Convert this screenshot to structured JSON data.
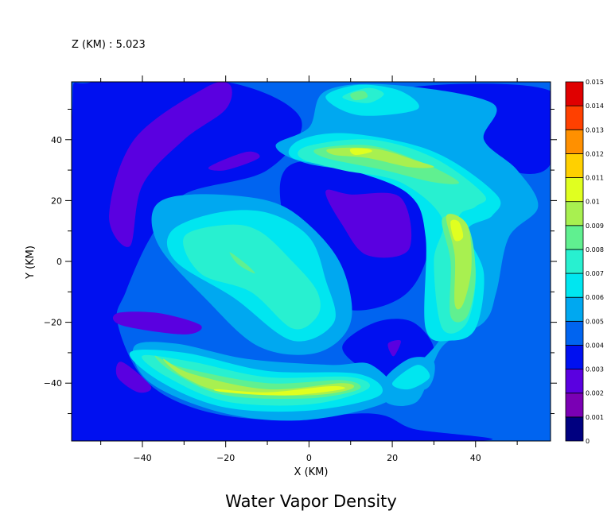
{
  "chart_data": {
    "type": "heatmap",
    "title": "Water Vapor Density",
    "subtitle": "Z (KM) : 5.023",
    "xlabel": "X (KM)",
    "ylabel": "Y (KM)",
    "xlim": [
      -57,
      58
    ],
    "ylim": [
      -59,
      59
    ],
    "xticks": [
      -40,
      -20,
      0,
      20,
      40
    ],
    "yticks": [
      -40,
      -20,
      0,
      20,
      40
    ],
    "colorbar": {
      "levels": [
        "0",
        "0.001",
        "0.002",
        "0.003",
        "0.004",
        "0.005",
        "0.006",
        "0.007",
        "0.008",
        "0.009",
        "0.01",
        "0.011",
        "0.012",
        "0.013",
        "0.014",
        "0.015"
      ],
      "colors": [
        "#000080",
        "#7a00b4",
        "#5a00e0",
        "#0010f0",
        "#0064f0",
        "#00a8f0",
        "#00e6f0",
        "#28f0d0",
        "#60f090",
        "#a8f050",
        "#e0ff20",
        "#ffd000",
        "#ff9000",
        "#ff4000",
        "#e00000",
        "#a00000"
      ]
    },
    "background_level": 0.004,
    "regions": [
      {
        "name": "low-nw",
        "level": 0.003,
        "points": [
          [
            -57,
            45
          ],
          [
            -52,
            59
          ],
          [
            -20,
            59
          ],
          [
            -2,
            47
          ],
          [
            -10,
            30
          ],
          [
            -30,
            22
          ],
          [
            -38,
            8
          ],
          [
            -44,
            -10
          ],
          [
            -46,
            -20
          ],
          [
            -40,
            -38
          ],
          [
            -28,
            -48
          ],
          [
            -10,
            -52
          ],
          [
            15,
            -50
          ],
          [
            25,
            -55
          ],
          [
            40,
            -59
          ],
          [
            -57,
            -59
          ]
        ]
      },
      {
        "name": "low-ne",
        "level": 0.003,
        "points": [
          [
            20,
            56
          ],
          [
            36,
            42
          ],
          [
            48,
            30
          ],
          [
            58,
            32
          ],
          [
            58,
            56
          ]
        ]
      },
      {
        "name": "low-c",
        "level": 0.003,
        "points": [
          [
            -4,
            32
          ],
          [
            22,
            30
          ],
          [
            30,
            20
          ],
          [
            28,
            0
          ],
          [
            22,
            -12
          ],
          [
            10,
            -16
          ],
          [
            0,
            -8
          ],
          [
            -6,
            12
          ]
        ]
      },
      {
        "name": "low-s",
        "level": 0.003,
        "points": [
          [
            8,
            -28
          ],
          [
            16,
            -20
          ],
          [
            25,
            -20
          ],
          [
            30,
            -30
          ],
          [
            22,
            -38
          ],
          [
            14,
            -36
          ]
        ]
      },
      {
        "name": "drop-nw",
        "level": 0.002,
        "points": [
          [
            -48,
            15
          ],
          [
            -42,
            40
          ],
          [
            -25,
            57
          ],
          [
            -19,
            58
          ],
          [
            -20,
            50
          ],
          [
            -30,
            40
          ],
          [
            -40,
            25
          ],
          [
            -43,
            5
          ]
        ]
      },
      {
        "name": "drop-n",
        "level": 0.002,
        "points": [
          [
            -24,
            31
          ],
          [
            -15,
            36
          ],
          [
            -12,
            34
          ],
          [
            -20,
            30
          ]
        ]
      },
      {
        "name": "drop-c",
        "level": 0.002,
        "points": [
          [
            4,
            23
          ],
          [
            10,
            22
          ],
          [
            22,
            21
          ],
          [
            24,
            4
          ],
          [
            14,
            2
          ],
          [
            8,
            12
          ]
        ]
      },
      {
        "name": "drop-sw",
        "level": 0.002,
        "points": [
          [
            -46,
            -17
          ],
          [
            -36,
            -17
          ],
          [
            -26,
            -21
          ],
          [
            -30,
            -24
          ],
          [
            -45,
            -21
          ]
        ]
      },
      {
        "name": "drop-s",
        "level": 0.002,
        "points": [
          [
            -45,
            -33
          ],
          [
            -38,
            -41
          ],
          [
            -41,
            -43
          ],
          [
            -46,
            -38
          ]
        ]
      },
      {
        "name": "drop-s2",
        "level": 0.002,
        "points": [
          [
            19,
            -27
          ],
          [
            22,
            -26
          ],
          [
            21,
            -30
          ],
          [
            20,
            -31
          ]
        ]
      },
      {
        "name": "b5-a",
        "level": 0.005,
        "points": [
          [
            -37,
            18
          ],
          [
            -28,
            22
          ],
          [
            -10,
            20
          ],
          [
            0,
            12
          ],
          [
            8,
            -2
          ],
          [
            10,
            -20
          ],
          [
            2,
            -30
          ],
          [
            -12,
            -28
          ],
          [
            -25,
            -12
          ],
          [
            -36,
            5
          ]
        ]
      },
      {
        "name": "b5-b",
        "level": 0.005,
        "points": [
          [
            -42,
            -28
          ],
          [
            -32,
            -27
          ],
          [
            -15,
            -32
          ],
          [
            5,
            -34
          ],
          [
            15,
            -34
          ],
          [
            20,
            -45
          ],
          [
            0,
            -52
          ],
          [
            -20,
            -50
          ],
          [
            -38,
            -40
          ]
        ]
      },
      {
        "name": "b5-c",
        "level": 0.005,
        "points": [
          [
            -8,
            38
          ],
          [
            0,
            44
          ],
          [
            4,
            56
          ],
          [
            20,
            58
          ],
          [
            44,
            52
          ],
          [
            42,
            40
          ],
          [
            50,
            30
          ],
          [
            55,
            18
          ],
          [
            48,
            8
          ],
          [
            45,
            -10
          ],
          [
            42,
            -20
          ],
          [
            32,
            -28
          ],
          [
            26,
            -46
          ],
          [
            18,
            -44
          ],
          [
            32,
            -24
          ],
          [
            30,
            0
          ],
          [
            30,
            20
          ],
          [
            20,
            28
          ],
          [
            0,
            32
          ]
        ]
      },
      {
        "name": "b5-d",
        "level": 0.005,
        "points": [
          [
            18,
            -40
          ],
          [
            24,
            -32
          ],
          [
            30,
            -33
          ],
          [
            28,
            -42
          ]
        ]
      },
      {
        "name": "b6-a",
        "level": 0.006,
        "points": [
          [
            -33,
            10
          ],
          [
            -22,
            16
          ],
          [
            -10,
            16
          ],
          [
            0,
            8
          ],
          [
            4,
            -6
          ],
          [
            6,
            -20
          ],
          [
            -4,
            -26
          ],
          [
            -18,
            -12
          ],
          [
            -32,
            0
          ]
        ]
      },
      {
        "name": "b6-b",
        "level": 0.006,
        "points": [
          [
            -43,
            -30
          ],
          [
            -30,
            -30
          ],
          [
            -10,
            -36
          ],
          [
            12,
            -37
          ],
          [
            17,
            -44
          ],
          [
            0,
            -49
          ],
          [
            -20,
            -48
          ],
          [
            -35,
            -40
          ]
        ]
      },
      {
        "name": "b6-c",
        "level": 0.006,
        "points": [
          [
            -2,
            40
          ],
          [
            10,
            42
          ],
          [
            30,
            36
          ],
          [
            45,
            22
          ],
          [
            44,
            15
          ],
          [
            38,
            10
          ],
          [
            42,
            -4
          ],
          [
            40,
            -22
          ],
          [
            34,
            -26
          ],
          [
            28,
            -22
          ],
          [
            28,
            8
          ],
          [
            24,
            22
          ],
          [
            10,
            30
          ],
          [
            -4,
            34
          ]
        ]
      },
      {
        "name": "b6-d",
        "level": 0.006,
        "points": [
          [
            4,
            54
          ],
          [
            12,
            58
          ],
          [
            22,
            56
          ],
          [
            26,
            50
          ],
          [
            12,
            48
          ]
        ]
      },
      {
        "name": "b6-e",
        "level": 0.006,
        "points": [
          [
            20,
            -40
          ],
          [
            26,
            -34
          ],
          [
            29,
            -38
          ],
          [
            24,
            -42
          ]
        ]
      },
      {
        "name": "b7-a",
        "level": 0.007,
        "points": [
          [
            -30,
            8
          ],
          [
            -20,
            12
          ],
          [
            -12,
            10
          ],
          [
            -4,
            0
          ],
          [
            2,
            -10
          ],
          [
            2,
            -18
          ],
          [
            -4,
            -22
          ],
          [
            -14,
            -10
          ],
          [
            -26,
            -4
          ]
        ]
      },
      {
        "name": "b7-b",
        "level": 0.007,
        "points": [
          [
            -40,
            -31
          ],
          [
            -28,
            -33
          ],
          [
            -10,
            -38
          ],
          [
            10,
            -38
          ],
          [
            14,
            -42
          ],
          [
            0,
            -47
          ],
          [
            -20,
            -46
          ],
          [
            -34,
            -38
          ]
        ]
      },
      {
        "name": "b7-c",
        "level": 0.007,
        "points": [
          [
            0,
            38
          ],
          [
            15,
            40
          ],
          [
            30,
            34
          ],
          [
            42,
            22
          ],
          [
            40,
            18
          ],
          [
            36,
            14
          ],
          [
            40,
            -2
          ],
          [
            38,
            -20
          ],
          [
            32,
            -22
          ],
          [
            30,
            0
          ],
          [
            32,
            14
          ],
          [
            22,
            26
          ],
          [
            8,
            30
          ],
          [
            -2,
            34
          ]
        ]
      },
      {
        "name": "b7-d",
        "level": 0.007,
        "points": [
          [
            8,
            54
          ],
          [
            14,
            57
          ],
          [
            18,
            55
          ],
          [
            14,
            52
          ]
        ]
      },
      {
        "name": "b8-a",
        "level": 0.008,
        "points": [
          [
            -19,
            3
          ],
          [
            -15,
            -1
          ],
          [
            -13,
            -4
          ],
          [
            -17,
            -1
          ]
        ]
      },
      {
        "name": "b8-b",
        "level": 0.008,
        "points": [
          [
            -37,
            -31
          ],
          [
            -30,
            -35
          ],
          [
            -10,
            -40
          ],
          [
            8,
            -39
          ],
          [
            12,
            -42
          ],
          [
            0,
            -45
          ],
          [
            -20,
            -44
          ],
          [
            -32,
            -37
          ]
        ]
      },
      {
        "name": "b8-c",
        "level": 0.008,
        "points": [
          [
            2,
            37
          ],
          [
            15,
            38
          ],
          [
            28,
            32
          ],
          [
            36,
            26
          ],
          [
            30,
            26
          ],
          [
            18,
            30
          ],
          [
            4,
            34
          ]
        ]
      },
      {
        "name": "b8-d",
        "level": 0.008,
        "points": [
          [
            32,
            14
          ],
          [
            38,
            12
          ],
          [
            40,
            -4
          ],
          [
            38,
            -18
          ],
          [
            34,
            -18
          ],
          [
            34,
            0
          ]
        ]
      },
      {
        "name": "b8-e",
        "level": 0.008,
        "points": [
          [
            10,
            55
          ],
          [
            13,
            56
          ],
          [
            14,
            54
          ],
          [
            11,
            53
          ]
        ]
      },
      {
        "name": "b9-a",
        "level": 0.009,
        "points": [
          [
            -35,
            -32
          ],
          [
            -28,
            -37
          ],
          [
            -10,
            -42
          ],
          [
            8,
            -40
          ],
          [
            10,
            -42
          ],
          [
            0,
            -44
          ],
          [
            -20,
            -43
          ],
          [
            -30,
            -38
          ]
        ]
      },
      {
        "name": "b9-b",
        "level": 0.009,
        "points": [
          [
            33,
            15
          ],
          [
            38,
            12
          ],
          [
            39,
            -2
          ],
          [
            37,
            -14
          ],
          [
            35,
            -14
          ],
          [
            35,
            2
          ]
        ]
      },
      {
        "name": "b9-c",
        "level": 0.009,
        "points": [
          [
            5,
            37
          ],
          [
            16,
            37
          ],
          [
            26,
            33
          ],
          [
            30,
            31
          ],
          [
            24,
            31
          ],
          [
            14,
            34
          ],
          [
            6,
            35
          ]
        ]
      },
      {
        "name": "b10-a",
        "level": 0.01,
        "points": [
          [
            -22,
            -42
          ],
          [
            -10,
            -43
          ],
          [
            5,
            -41
          ],
          [
            8,
            -42
          ],
          [
            -5,
            -44
          ],
          [
            -20,
            -43
          ]
        ]
      },
      {
        "name": "b10-b",
        "level": 0.01,
        "points": [
          [
            34,
            13
          ],
          [
            36,
            13
          ],
          [
            37,
            8
          ],
          [
            35,
            7
          ]
        ]
      },
      {
        "name": "b10-c",
        "level": 0.01,
        "points": [
          [
            10,
            37
          ],
          [
            14,
            37
          ],
          [
            15,
            36
          ],
          [
            11,
            35
          ]
        ]
      }
    ]
  }
}
